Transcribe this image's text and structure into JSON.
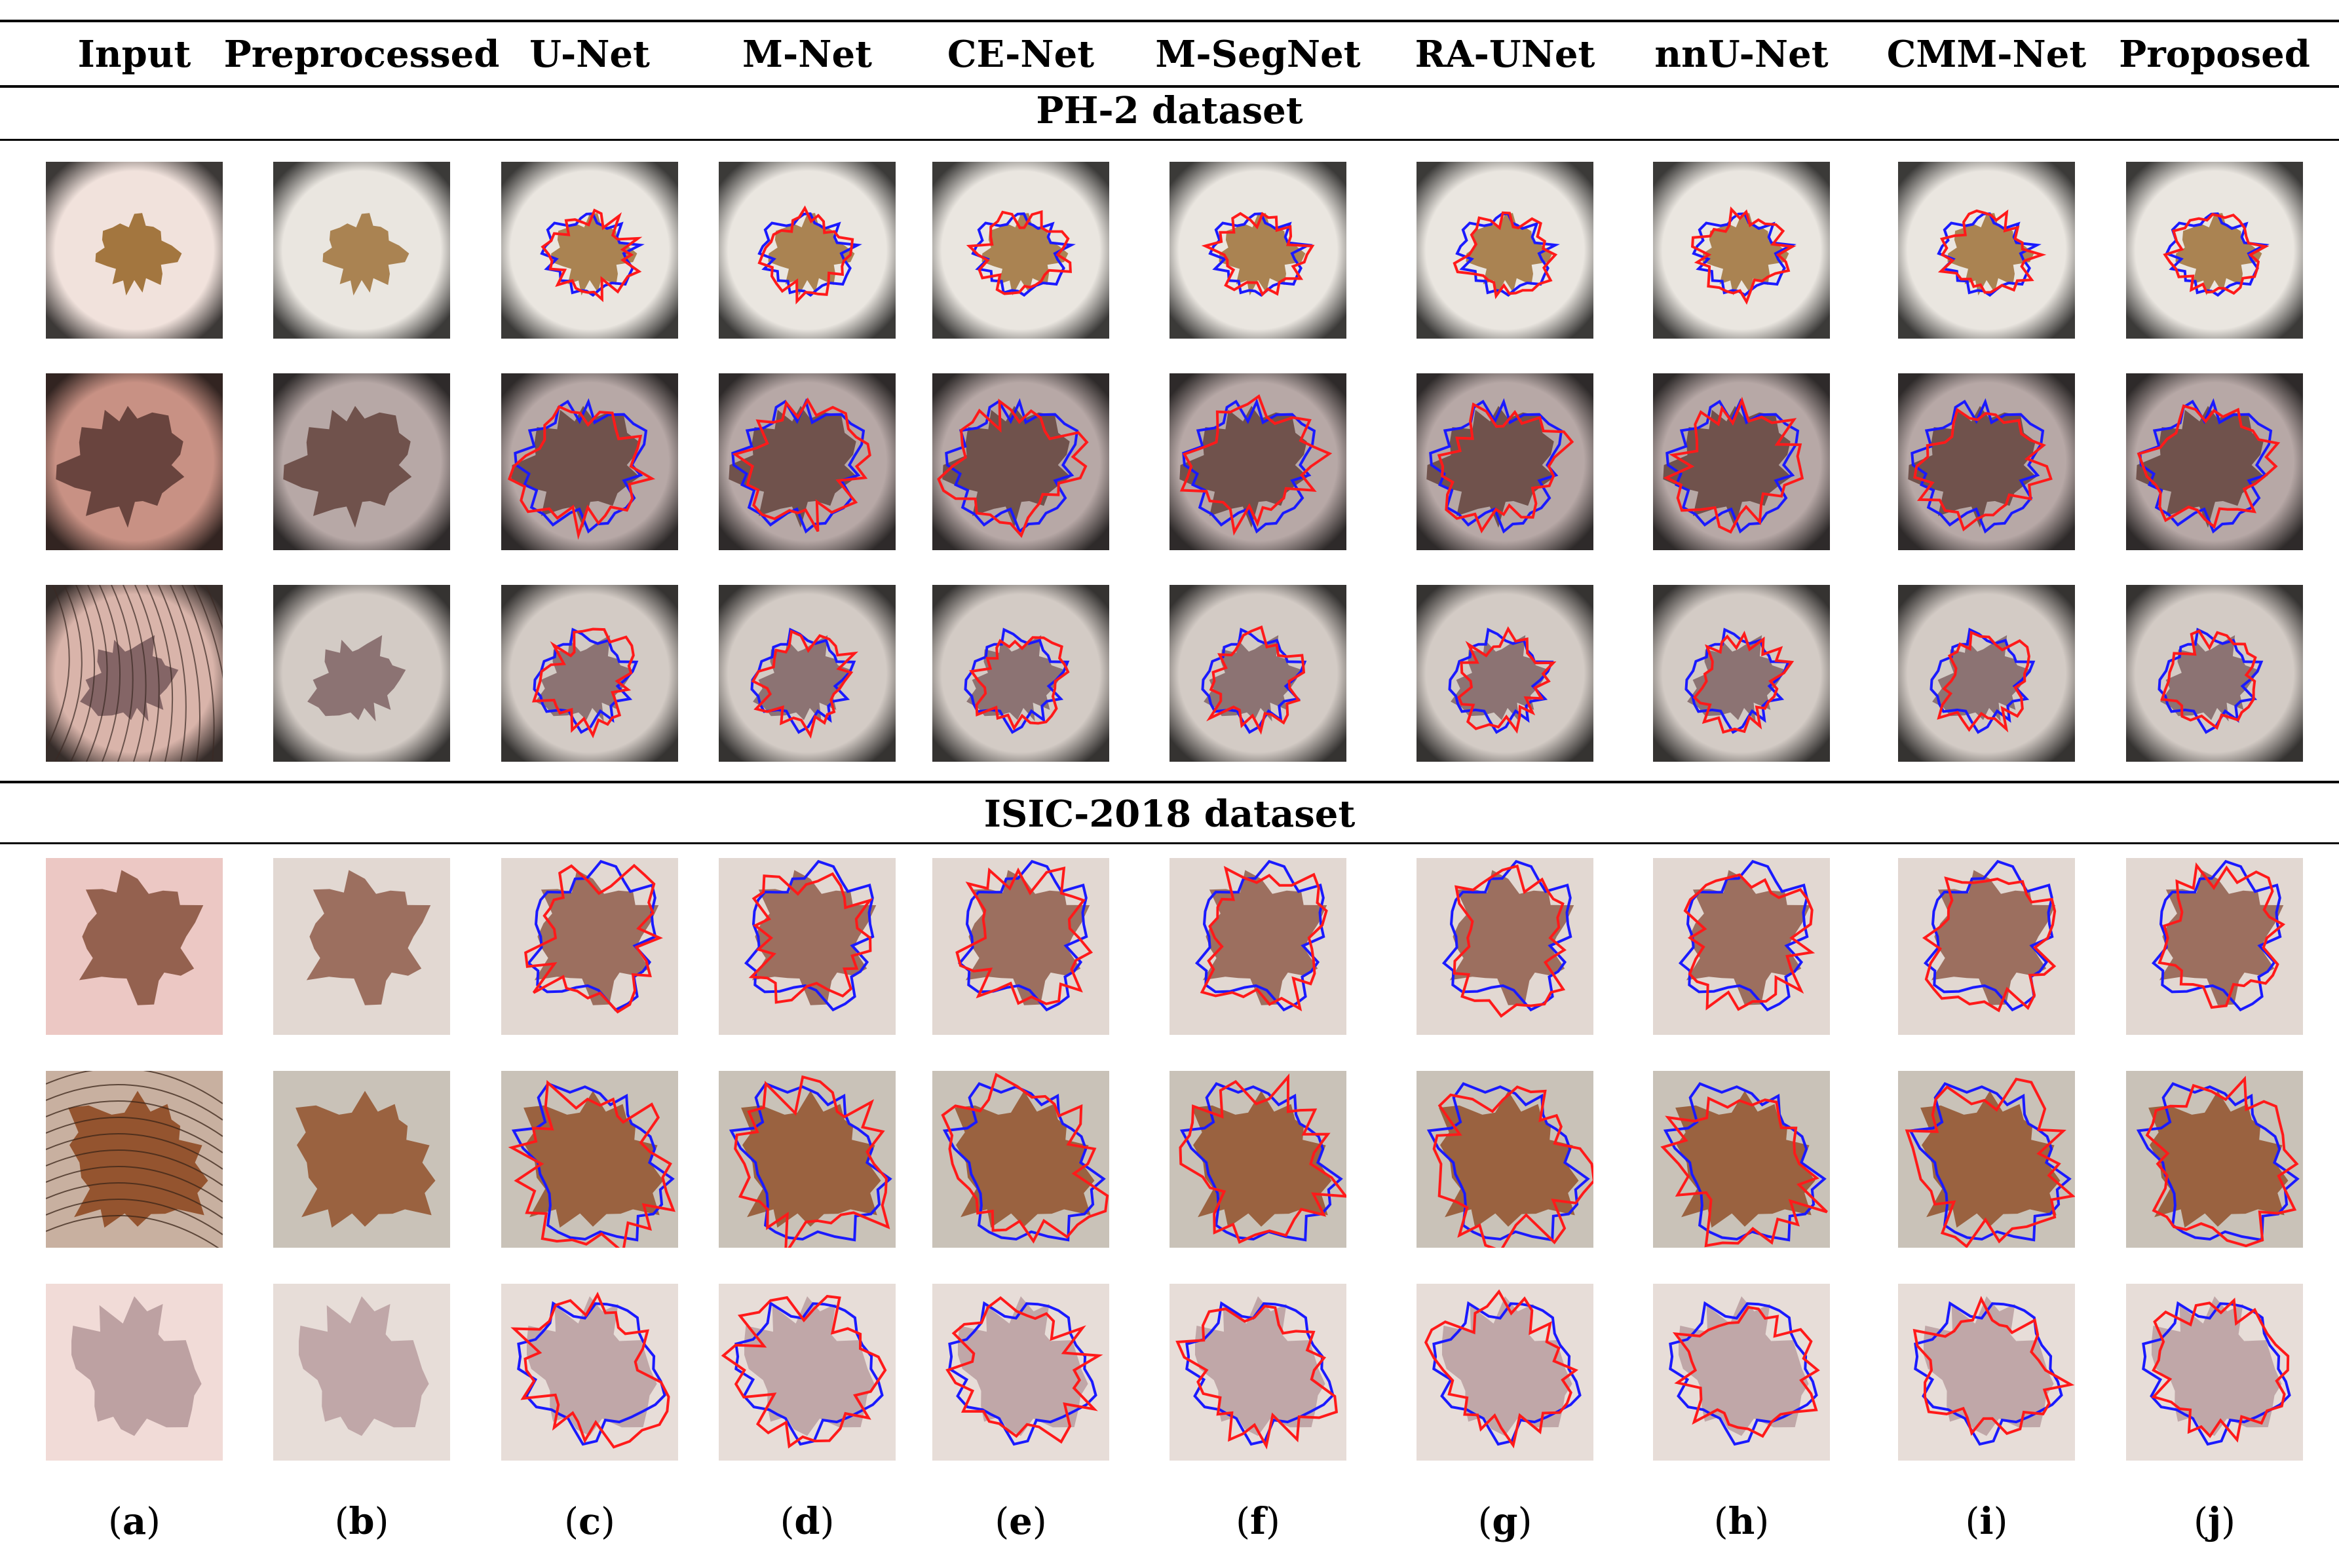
{
  "columns": [
    "Input",
    "Preprocessed",
    "U-Net",
    "M-Net",
    "CE-Net",
    "M-SegNet",
    "RA-UNet",
    "nnU-Net",
    "CMM-Net",
    "Proposed"
  ],
  "sections": [
    {
      "title": "PH-2 dataset",
      "rows": 3
    },
    {
      "title": "ISIC-2018 dataset",
      "rows": 3
    }
  ],
  "panel_letters": [
    "a",
    "b",
    "c",
    "d",
    "e",
    "f",
    "g",
    "h",
    "i",
    "j"
  ],
  "colors": {
    "ground_truth_contour": "#1a1aff",
    "prediction_contour": "#ff1a1a"
  }
}
